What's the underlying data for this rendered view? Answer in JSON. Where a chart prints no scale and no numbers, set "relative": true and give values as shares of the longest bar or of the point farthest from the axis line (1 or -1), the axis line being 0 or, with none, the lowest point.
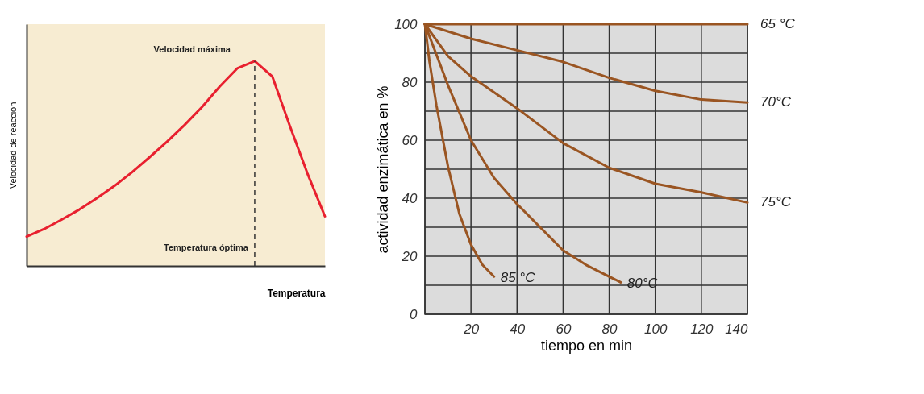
{
  "chart_data": [
    {
      "type": "line",
      "relative": true,
      "xlabel": "Temperatura",
      "ylabel": "Velocidad de reacción",
      "categories": [
        null,
        null,
        null,
        null,
        null,
        null,
        null,
        null,
        null,
        null,
        null,
        null,
        null,
        null,
        null,
        null,
        null,
        null
      ],
      "series": [
        {
          "color": "#e8202f",
          "values": [
            0.143,
            0.18,
            0.226,
            0.275,
            0.33,
            0.39,
            0.457,
            0.53,
            0.606,
            0.688,
            0.776,
            0.875,
            0.964,
            1.0,
            0.925,
            0.683,
            0.452,
            0.242
          ]
        }
      ],
      "annotations": [
        "Velocidad máxima"
      ],
      "ref_lines": [
        {
          "axis": "x",
          "label": "Temperatura óptima",
          "line_style": "dashed",
          "color": "#333333"
        }
      ],
      "tick_labels": false,
      "marker": "none",
      "line_style": "solid"
    },
    {
      "type": "line",
      "xlabel": "tiempo en min",
      "ylabel": "actividad enzimática en  %",
      "xlim": [
        0,
        140
      ],
      "ylim": [
        0,
        100
      ],
      "xticks": [
        {
          "value": 0,
          "label": null
        },
        20,
        40,
        60,
        80,
        100,
        120,
        140
      ],
      "yticks": [
        0,
        {
          "value": 10,
          "label": null
        },
        20,
        {
          "value": 30,
          "label": null
        },
        40,
        {
          "value": 50,
          "label": null
        },
        60,
        {
          "value": 70,
          "label": null
        },
        80,
        {
          "value": 90,
          "label": null
        },
        100
      ],
      "series": [
        {
          "name": "65 °C",
          "color": "#9a5522",
          "x": [
            0,
            140
          ],
          "values": [
            100,
            100
          ]
        },
        {
          "name": "70°C",
          "color": "#9a5522",
          "x": [
            0,
            20,
            40,
            60,
            80,
            100,
            120,
            140
          ],
          "values": [
            100,
            95,
            91,
            87,
            81.5,
            77,
            74,
            73
          ]
        },
        {
          "name": "75°C",
          "color": "#9a5522",
          "x": [
            0,
            10,
            20,
            40,
            60,
            80,
            100,
            120,
            140
          ],
          "values": [
            100,
            89,
            82,
            71,
            59,
            50.5,
            45,
            42,
            38.5
          ]
        },
        {
          "name": "80°C",
          "color": "#9a5522",
          "x": [
            0,
            10,
            20,
            30,
            40,
            60,
            70,
            85
          ],
          "values": [
            100,
            79,
            60,
            47,
            38,
            22,
            17,
            11
          ]
        },
        {
          "name": "85 °C",
          "color": "#9a5522",
          "x": [
            0,
            2,
            5,
            10,
            15,
            20,
            25,
            30
          ],
          "values": [
            100,
            87,
            72,
            51,
            34.5,
            24,
            17,
            13
          ]
        }
      ],
      "grid": true,
      "marker": "none",
      "line_style": "solid"
    }
  ]
}
